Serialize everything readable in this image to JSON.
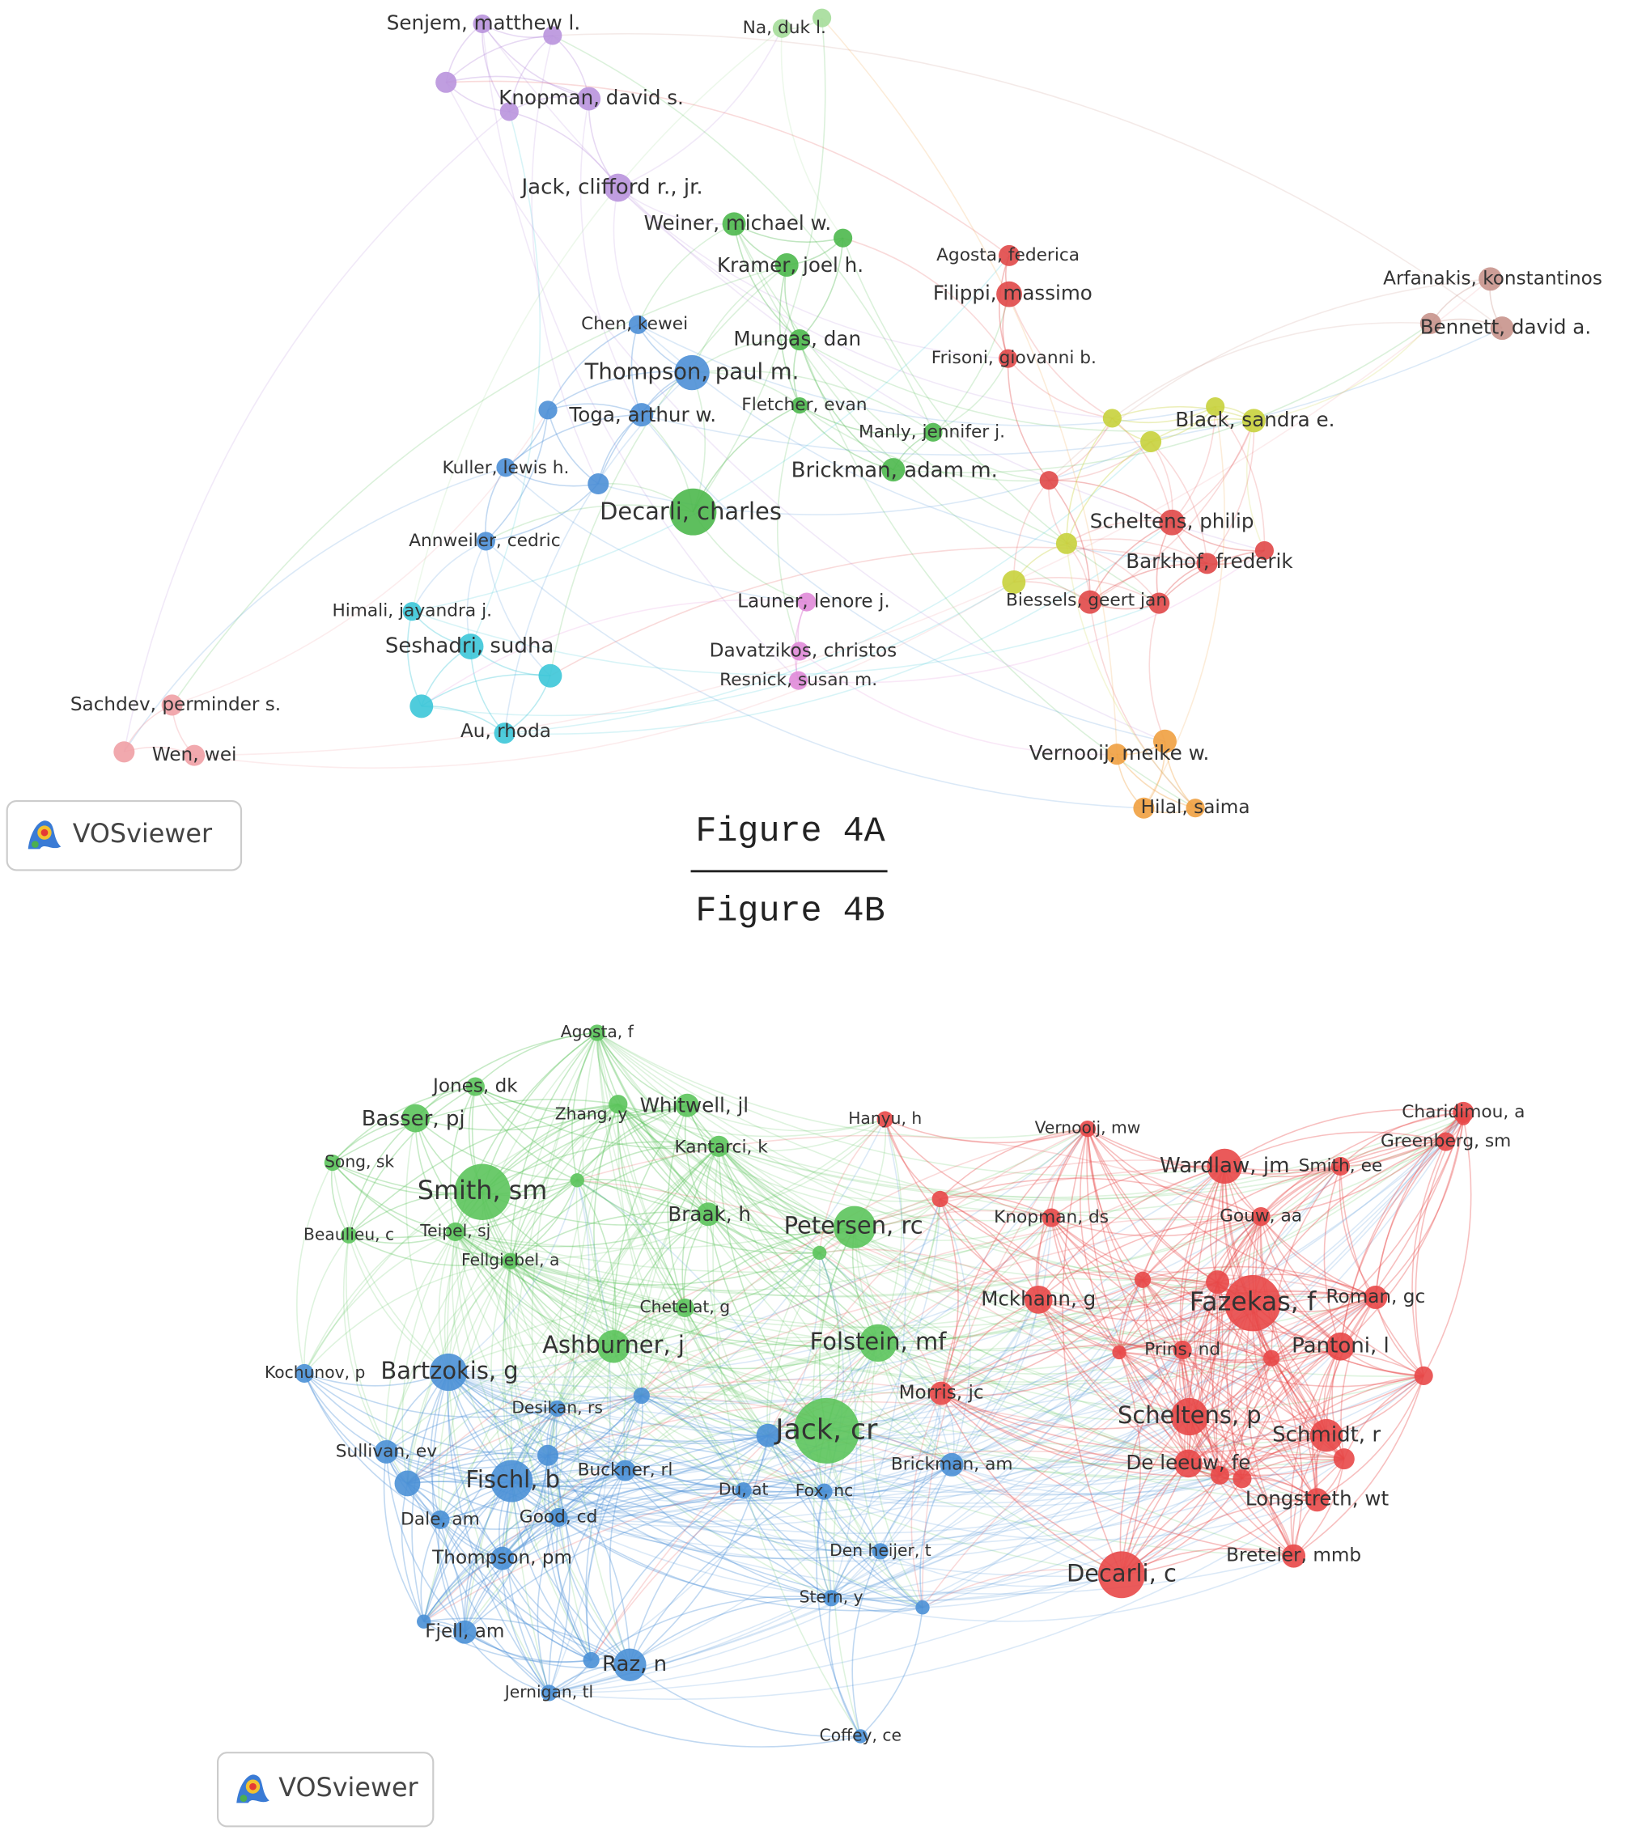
{
  "figure_a": {
    "caption": "Figure 4A",
    "logo": "VOSviewer",
    "nodes": [
      {
        "label": "Senjem, matthew l."
      },
      {
        "label": "Knopman, david s."
      },
      {
        "label": "Jack, clifford r., jr."
      },
      {
        "label": "Na, duk l."
      },
      {
        "label": "Weiner, michael w."
      },
      {
        "label": "Kramer, joel h."
      },
      {
        "label": "Mungas, dan"
      },
      {
        "label": "Fletcher, evan"
      },
      {
        "label": "Manly, jennifer j."
      },
      {
        "label": "Brickman, adam m."
      },
      {
        "label": "Decarli, charles"
      },
      {
        "label": "Chen, kewei"
      },
      {
        "label": "Thompson, paul m."
      },
      {
        "label": "Toga, arthur w."
      },
      {
        "label": "Kuller, lewis h."
      },
      {
        "label": "Annweiler, cedric"
      },
      {
        "label": "Himali, jayandra j."
      },
      {
        "label": "Seshadri, sudha"
      },
      {
        "label": "Au, rhoda"
      },
      {
        "label": "Sachdev, perminder s."
      },
      {
        "label": "Wen, wei"
      },
      {
        "label": "Launer, lenore j."
      },
      {
        "label": "Davatzikos, christos"
      },
      {
        "label": "Resnick, susan m."
      },
      {
        "label": "Agosta, federica"
      },
      {
        "label": "Filippi, massimo"
      },
      {
        "label": "Frisoni, giovanni b."
      },
      {
        "label": "Scheltens, philip"
      },
      {
        "label": "Barkhof, frederik"
      },
      {
        "label": "Biessels, geert jan"
      },
      {
        "label": "Arfanakis, konstantinos"
      },
      {
        "label": "Bennett, david a."
      },
      {
        "label": "Black, sandra e."
      },
      {
        "label": "Vernooij, meike w."
      },
      {
        "label": "Hilal, saima"
      }
    ]
  },
  "figure_b": {
    "caption": "Figure 4B",
    "logo": "VOSviewer",
    "nodes": [
      {
        "label": "Agosta, f"
      },
      {
        "label": "Jones, dk"
      },
      {
        "label": "Basser, pj"
      },
      {
        "label": "Zhang, y"
      },
      {
        "label": "Whitwell, jl"
      },
      {
        "label": "Song, sk"
      },
      {
        "label": "Kantarci, k"
      },
      {
        "label": "Smith, sm"
      },
      {
        "label": "Beaulieu, c"
      },
      {
        "label": "Teipel, sj"
      },
      {
        "label": "Braak, h"
      },
      {
        "label": "Petersen, rc"
      },
      {
        "label": "Fellgiebel, a"
      },
      {
        "label": "Chetelat, g"
      },
      {
        "label": "Ashburner, j"
      },
      {
        "label": "Folstein, mf"
      },
      {
        "label": "Jack, cr"
      },
      {
        "label": "Kochunov, p"
      },
      {
        "label": "Bartzokis, g"
      },
      {
        "label": "Desikan, rs"
      },
      {
        "label": "Sullivan, ev"
      },
      {
        "label": "Fischl, b"
      },
      {
        "label": "Buckner, rl"
      },
      {
        "label": "Du, at"
      },
      {
        "label": "Fox, nc"
      },
      {
        "label": "Brickman, am"
      },
      {
        "label": "Dale, am"
      },
      {
        "label": "Good, cd"
      },
      {
        "label": "Thompson, pm"
      },
      {
        "label": "Den heijer, t"
      },
      {
        "label": "Stern, y"
      },
      {
        "label": "Fjell, am"
      },
      {
        "label": "Raz, n"
      },
      {
        "label": "Jernigan, tl"
      },
      {
        "label": "Coffey, ce"
      },
      {
        "label": "Hanyu, h"
      },
      {
        "label": "Vernooij, mw"
      },
      {
        "label": "Charidimou, a"
      },
      {
        "label": "Greenberg, sm"
      },
      {
        "label": "Wardlaw, jm"
      },
      {
        "label": "Smith, ee"
      },
      {
        "label": "Knopman, ds"
      },
      {
        "label": "Gouw, aa"
      },
      {
        "label": "Mckhann, g"
      },
      {
        "label": "Fazekas, f"
      },
      {
        "label": "Roman, gc"
      },
      {
        "label": "Prins, nd"
      },
      {
        "label": "Pantoni, l"
      },
      {
        "label": "Morris, jc"
      },
      {
        "label": "Scheltens, p"
      },
      {
        "label": "Schmidt, r"
      },
      {
        "label": "De leeuw, fe"
      },
      {
        "label": "Longstreth, wt"
      },
      {
        "label": "Breteler, mmb"
      },
      {
        "label": "Decarli, c"
      }
    ]
  }
}
